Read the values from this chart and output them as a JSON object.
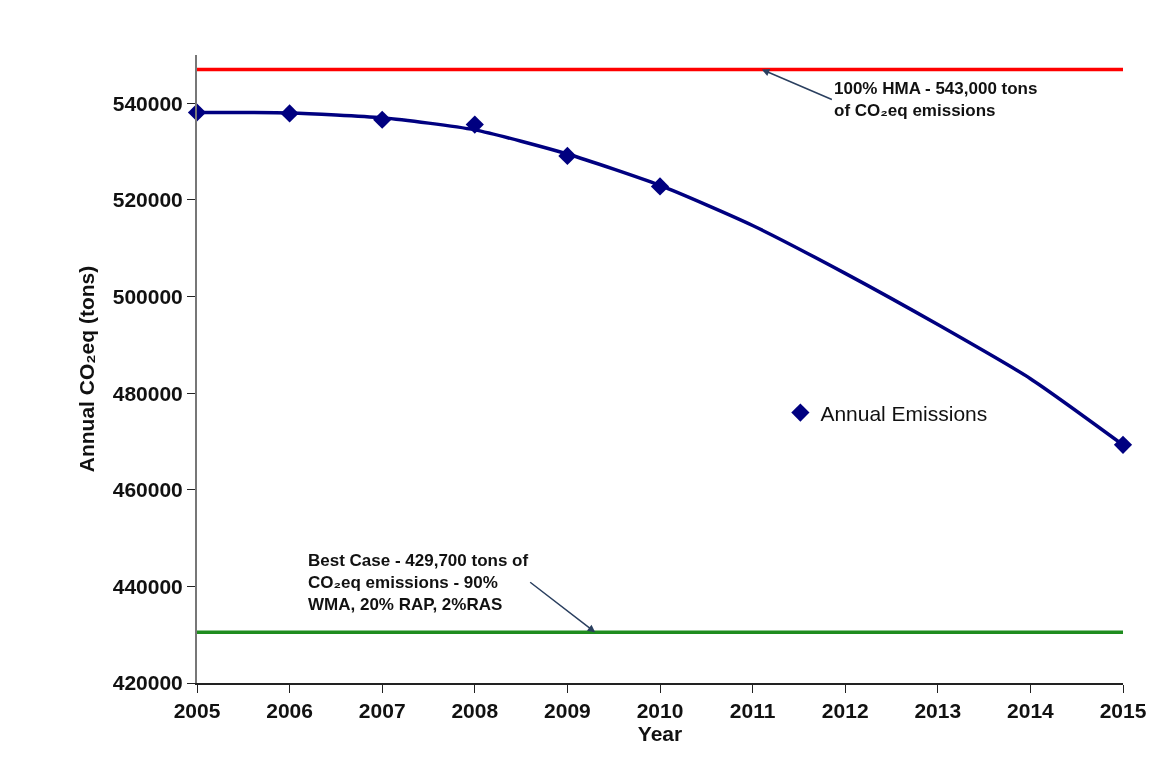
{
  "chart_data": {
    "type": "scatter",
    "xlabel": "Year",
    "ylabel": "Annual CO₂eq (tons)",
    "x": [
      2005,
      2006,
      2007,
      2008,
      2009,
      2010,
      2015
    ],
    "series": [
      {
        "name": "Annual Emissions",
        "marker": "diamond",
        "color": "#000080",
        "values": [
          538100,
          537900,
          536600,
          535600,
          529100,
          522800,
          469300
        ]
      },
      {
        "type": "line",
        "marker": "none",
        "color": "#000080",
        "x": [
          2005,
          2006,
          2007,
          2008,
          2009,
          2010,
          2011,
          2012,
          2013,
          2014,
          2015
        ],
        "values": [
          538100,
          538000,
          537000,
          534500,
          529500,
          523000,
          514700,
          504800,
          494200,
          483000,
          469300
        ]
      }
    ],
    "ref_lines": [
      {
        "axis": "y",
        "value": 547000,
        "color": "#ff0000"
      },
      {
        "axis": "y",
        "value": 430500,
        "color": "#1f8c1f"
      }
    ],
    "annotations": [
      {
        "text": "100% HMA - 543,000 tons\nof CO₂eq emissions",
        "x": 2011.1,
        "y": 547000
      },
      {
        "text": "Best Case - 429,700 tons of\nCO₂eq emissions - 90%\nWMA, 20% RAP, 2%RAS",
        "x": 2009.3,
        "y": 430500
      }
    ],
    "xlim": [
      2005,
      2015
    ],
    "xticks": [
      2005,
      2006,
      2007,
      2008,
      2009,
      2010,
      2011,
      2012,
      2013,
      2014,
      2015
    ],
    "ylim": [
      420000,
      550000
    ],
    "yticks": [
      420000,
      440000,
      460000,
      480000,
      500000,
      520000,
      540000
    ],
    "legend": "right"
  }
}
